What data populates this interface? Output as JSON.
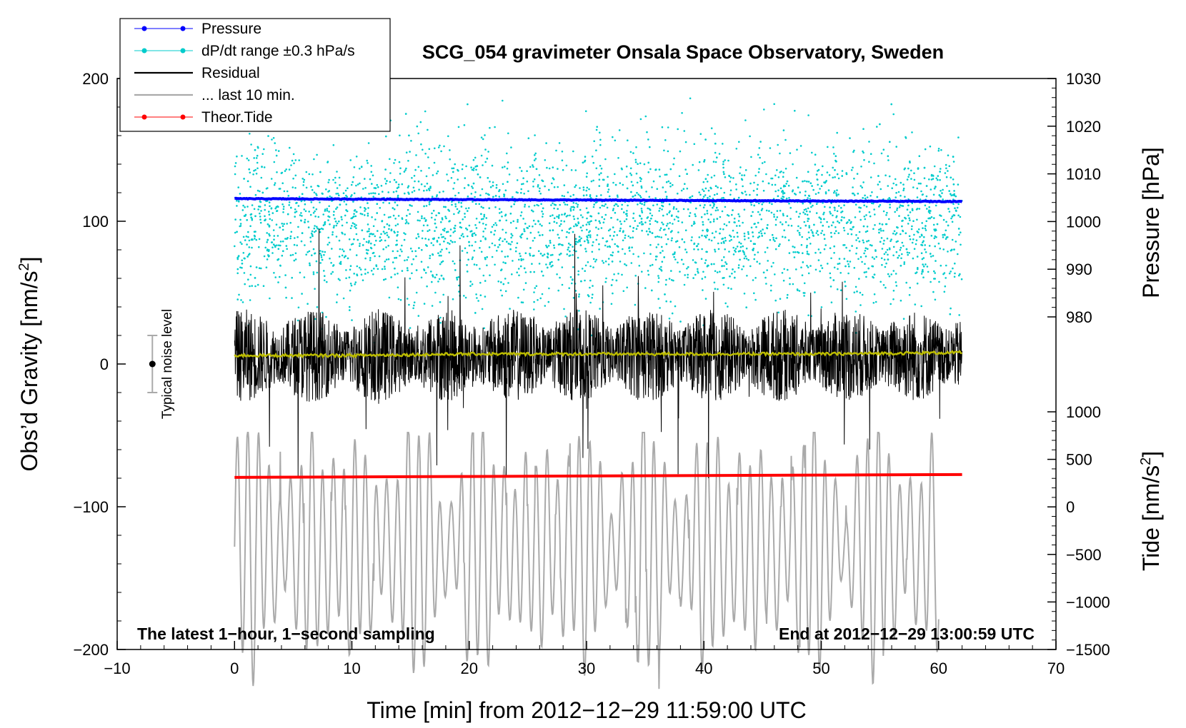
{
  "chart_data": {
    "type": "line",
    "title": "SCG_054 gravimeter Onsala Space Observatory, Sweden",
    "xlabel": "Time [min] from 2012−12−29 11:59:00 UTC",
    "ylabel_left_main": "Obs’d Gravity [nm/s",
    "ylabel_left_sup": "2",
    "ylabel_left_end": "]",
    "ylabel_right_top": "Pressure [hPa]",
    "ylabel_right_bottom_main": "Tide [nm/s",
    "ylabel_right_bottom_sup": "2",
    "ylabel_right_bottom_end": "]",
    "xlim": [
      -10,
      70
    ],
    "ylim": [
      -200,
      200
    ],
    "pressure_axis_range": [
      980,
      1030
    ],
    "tide_axis_range": [
      -1500,
      1000
    ],
    "x_ticks": [
      "−10",
      "0",
      "10",
      "20",
      "30",
      "40",
      "50",
      "60",
      "70"
    ],
    "y_ticks": [
      "−200",
      "−100",
      "0",
      "100",
      "200"
    ],
    "pressure_ticks": [
      "980",
      "990",
      "1000",
      "1010",
      "1020",
      "1030"
    ],
    "tide_ticks": [
      "−1500",
      "−1000",
      "−500",
      "0",
      "500",
      "1000"
    ],
    "note_left": "The latest 1−hour, 1−second sampling",
    "note_right": "End at 2012−12−29 13:00:59 UTC",
    "noise_label": "Typical noise level",
    "noise_level": {
      "x": -7,
      "center": 0,
      "half_range": 20
    },
    "legend": [
      {
        "label": "Pressure",
        "color": "#0000ff"
      },
      {
        "label": "dP/dt range ±0.3 hPa/s",
        "color": "#00cccc"
      },
      {
        "label": "Residual",
        "color": "#000000"
      },
      {
        "label": "... last 10 min.",
        "color": "#aaaaaa"
      },
      {
        "label": "Theor.Tide",
        "color": "#ff0000"
      }
    ],
    "series": [
      {
        "name": "Pressure",
        "axis": "pressure",
        "color": "#0000ff",
        "x": [
          0,
          10,
          20,
          30,
          40,
          50,
          62
        ],
        "values": [
          1004.8,
          1004.7,
          1004.6,
          1004.5,
          1004.4,
          1004.3,
          1004.2
        ]
      },
      {
        "name": "dP/dt range ±0.3 hPa/s",
        "axis": "pressure",
        "color": "#00cccc",
        "band_center_hPa": 1000,
        "band_half_width_hPa": 15,
        "x_start": 0,
        "x_end": 62
      },
      {
        "name": "Residual",
        "axis": "gravity",
        "color": "#000000",
        "x_start": 0,
        "x_end": 62,
        "mean": 6,
        "typical_amplitude": 25,
        "max_amplitude": 90
      },
      {
        "name": "Residual mean",
        "axis": "gravity",
        "color": "#bbbb00",
        "x": [
          0,
          10,
          20,
          30,
          40,
          50,
          62
        ],
        "values": [
          6,
          6,
          7,
          7,
          7,
          7,
          8
        ]
      },
      {
        "name": "... last 10 min.",
        "axis": "gravity",
        "color": "#aaaaaa",
        "x_start": 0,
        "x_end": 60,
        "center": -128,
        "typical_amplitude": 45,
        "max_amplitude": 100
      },
      {
        "name": "Theor.Tide",
        "axis": "tide",
        "color": "#ff0000",
        "x": [
          0,
          10,
          20,
          30,
          40,
          50,
          62
        ],
        "values": [
          310,
          315,
          320,
          325,
          330,
          335,
          340
        ]
      }
    ]
  },
  "colors": {
    "pressure": "#0000ff",
    "dpdt": "#00cccc",
    "residual": "#000000",
    "residual_mean": "#bbbb00",
    "last10": "#aaaaaa",
    "tide": "#ff0000"
  }
}
